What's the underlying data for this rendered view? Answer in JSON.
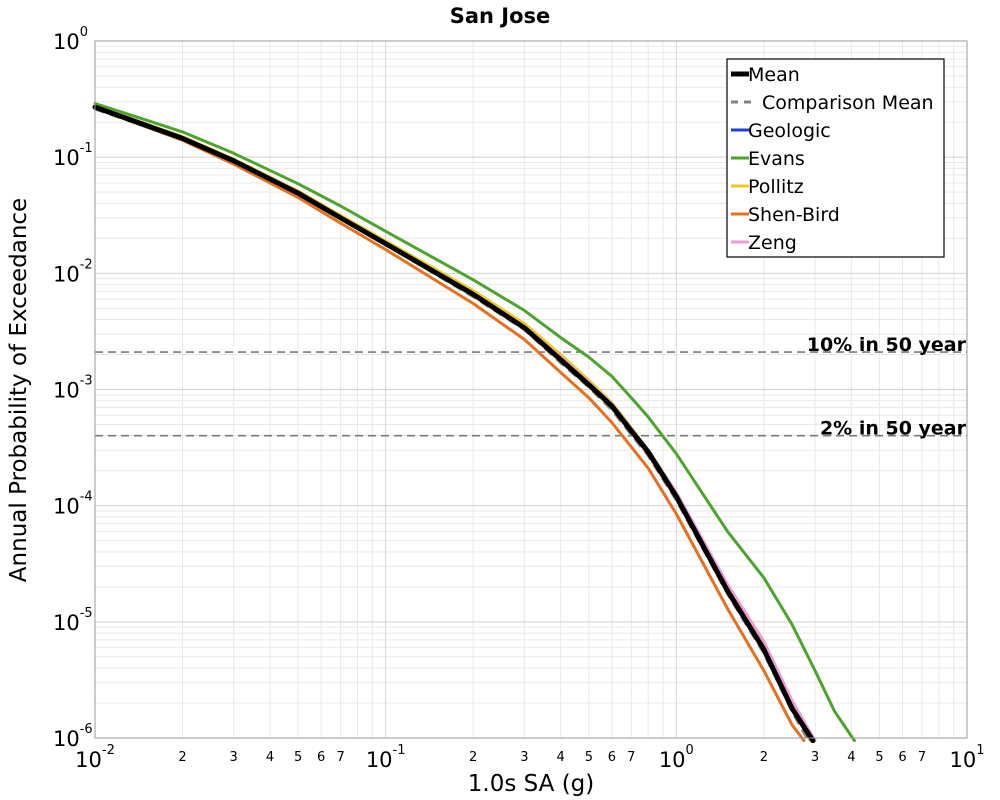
{
  "chart_data": {
    "type": "line",
    "title": "San Jose",
    "xlabel": "1.0s SA (g)",
    "ylabel": "Annual Probability of Exceedance",
    "xscale": "log",
    "yscale": "log",
    "xlim": [
      0.01,
      10
    ],
    "ylim": [
      1e-06,
      1
    ],
    "grid": true,
    "legend": {
      "placement": "top-right"
    },
    "x_major_ticks": [
      {
        "base": "10",
        "exp": "-2"
      },
      {
        "base": "10",
        "exp": "-1"
      },
      {
        "base": "10",
        "exp": "0"
      },
      {
        "base": "10",
        "exp": "1"
      }
    ],
    "x_minor_tick_labels": [
      "2",
      "3",
      "4",
      "5",
      "6",
      "7"
    ],
    "y_major_ticks": [
      {
        "base": "10",
        "exp": "0"
      },
      {
        "base": "10",
        "exp": "-1"
      },
      {
        "base": "10",
        "exp": "-2"
      },
      {
        "base": "10",
        "exp": "-3"
      },
      {
        "base": "10",
        "exp": "-4"
      },
      {
        "base": "10",
        "exp": "-5"
      },
      {
        "base": "10",
        "exp": "-6"
      }
    ],
    "reference_lines": [
      {
        "label": "10% in 50 year",
        "y": 0.0021
      },
      {
        "label": "2% in 50 year",
        "y": 0.0004
      }
    ],
    "series": [
      {
        "name": "Geologic",
        "color": "#1f3fe0",
        "width": 3,
        "dash": "",
        "points": [
          [
            0.01,
            0.27
          ],
          [
            0.02,
            0.145
          ],
          [
            0.03,
            0.093
          ],
          [
            0.05,
            0.049
          ],
          [
            0.07,
            0.03
          ],
          [
            0.1,
            0.018
          ],
          [
            0.2,
            0.0065
          ],
          [
            0.3,
            0.0034
          ],
          [
            0.4,
            0.0018
          ],
          [
            0.5,
            0.0011
          ],
          [
            0.6,
            0.0007
          ],
          [
            0.7,
            0.00043
          ],
          [
            0.8,
            0.00028
          ],
          [
            1.0,
            0.00012
          ],
          [
            1.5,
            1.85e-05
          ],
          [
            2.0,
            5.8e-06
          ],
          [
            2.5,
            1.8e-06
          ],
          [
            2.9,
            9.5e-07
          ]
        ]
      },
      {
        "name": "Evans",
        "color": "#4aa52a",
        "width": 3,
        "dash": "",
        "points": [
          [
            0.01,
            0.29
          ],
          [
            0.02,
            0.165
          ],
          [
            0.03,
            0.108
          ],
          [
            0.05,
            0.059
          ],
          [
            0.07,
            0.038
          ],
          [
            0.1,
            0.023
          ],
          [
            0.2,
            0.0088
          ],
          [
            0.3,
            0.0048
          ],
          [
            0.4,
            0.0028
          ],
          [
            0.5,
            0.0019
          ],
          [
            0.6,
            0.0013
          ],
          [
            0.7,
            0.00085
          ],
          [
            0.8,
            0.00058
          ],
          [
            1.0,
            0.00028
          ],
          [
            1.5,
            6e-05
          ],
          [
            2.0,
            2.4e-05
          ],
          [
            2.5,
            9.5e-06
          ],
          [
            3.0,
            3.8e-06
          ],
          [
            3.5,
            1.7e-06
          ],
          [
            4.1,
            9.5e-07
          ]
        ]
      },
      {
        "name": "Pollitz",
        "color": "#ecc81f",
        "width": 3,
        "dash": "",
        "points": [
          [
            0.01,
            0.275
          ],
          [
            0.02,
            0.15
          ],
          [
            0.03,
            0.096
          ],
          [
            0.05,
            0.051
          ],
          [
            0.07,
            0.0315
          ],
          [
            0.1,
            0.019
          ],
          [
            0.2,
            0.0071
          ],
          [
            0.3,
            0.0037
          ],
          [
            0.4,
            0.002
          ],
          [
            0.5,
            0.0012
          ],
          [
            0.6,
            0.00077
          ],
          [
            0.7,
            0.00047
          ],
          [
            0.8,
            0.0003
          ],
          [
            1.0,
            0.000125
          ],
          [
            1.5,
            1.95e-05
          ],
          [
            2.0,
            6.2e-06
          ],
          [
            2.5,
            1.9e-06
          ],
          [
            2.9,
            9.5e-07
          ]
        ]
      },
      {
        "name": "Shen-Bird",
        "color": "#e86f1e",
        "width": 3,
        "dash": "",
        "points": [
          [
            0.01,
            0.265
          ],
          [
            0.02,
            0.14
          ],
          [
            0.03,
            0.087
          ],
          [
            0.05,
            0.045
          ],
          [
            0.07,
            0.027
          ],
          [
            0.1,
            0.016
          ],
          [
            0.2,
            0.0055
          ],
          [
            0.3,
            0.0027
          ],
          [
            0.4,
            0.0014
          ],
          [
            0.5,
            0.00085
          ],
          [
            0.6,
            0.00052
          ],
          [
            0.7,
            0.00032
          ],
          [
            0.8,
            0.00021
          ],
          [
            1.0,
            8.5e-05
          ],
          [
            1.5,
            1.3e-05
          ],
          [
            2.0,
            3.8e-06
          ],
          [
            2.5,
            1.3e-06
          ],
          [
            2.75,
            9.5e-07
          ]
        ]
      },
      {
        "name": "Zeng",
        "color": "#f29ad8",
        "width": 3,
        "dash": "",
        "points": [
          [
            0.01,
            0.27
          ],
          [
            0.02,
            0.146
          ],
          [
            0.03,
            0.094
          ],
          [
            0.05,
            0.05
          ],
          [
            0.07,
            0.0305
          ],
          [
            0.1,
            0.0182
          ],
          [
            0.2,
            0.0067
          ],
          [
            0.3,
            0.0035
          ],
          [
            0.4,
            0.0019
          ],
          [
            0.5,
            0.00115
          ],
          [
            0.6,
            0.00075
          ],
          [
            0.7,
            0.00046
          ],
          [
            0.8,
            0.0003
          ],
          [
            1.0,
            0.00013
          ],
          [
            1.5,
            2.1e-05
          ],
          [
            2.0,
            6.8e-06
          ],
          [
            2.5,
            2.1e-06
          ],
          [
            3.0,
            9.5e-07
          ]
        ]
      },
      {
        "name": "Comparison Mean",
        "color": "#808080",
        "width": 3,
        "dash": "10,6",
        "points": [
          [
            0.01,
            0.26
          ],
          [
            0.02,
            0.143
          ],
          [
            0.03,
            0.091
          ],
          [
            0.05,
            0.048
          ],
          [
            0.07,
            0.0295
          ],
          [
            0.1,
            0.0177
          ],
          [
            0.2,
            0.0063
          ],
          [
            0.3,
            0.0033
          ],
          [
            0.4,
            0.0017
          ],
          [
            0.5,
            0.00105
          ],
          [
            0.6,
            0.00067
          ],
          [
            0.7,
            0.00041
          ],
          [
            0.8,
            0.00027
          ],
          [
            1.0,
            0.000112
          ],
          [
            1.5,
            1.75e-05
          ],
          [
            2.0,
            5.4e-06
          ],
          [
            2.5,
            1.7e-06
          ],
          [
            2.85,
            9.5e-07
          ]
        ]
      },
      {
        "name": "Mean",
        "color": "#000000",
        "width": 5,
        "dash": "",
        "points": [
          [
            0.01,
            0.27
          ],
          [
            0.02,
            0.145
          ],
          [
            0.03,
            0.093
          ],
          [
            0.05,
            0.049
          ],
          [
            0.07,
            0.03
          ],
          [
            0.1,
            0.018
          ],
          [
            0.2,
            0.0066
          ],
          [
            0.3,
            0.0034
          ],
          [
            0.4,
            0.0018
          ],
          [
            0.5,
            0.0011
          ],
          [
            0.6,
            0.00072
          ],
          [
            0.7,
            0.00044
          ],
          [
            0.8,
            0.00029
          ],
          [
            1.0,
            0.00012
          ],
          [
            1.5,
            1.85e-05
          ],
          [
            2.0,
            5.8e-06
          ],
          [
            2.5,
            1.8e-06
          ],
          [
            2.95,
            9.5e-07
          ]
        ]
      }
    ],
    "legend_order": [
      "Mean",
      "Comparison Mean",
      "Geologic",
      "Evans",
      "Pollitz",
      "Shen-Bird",
      "Zeng"
    ]
  }
}
